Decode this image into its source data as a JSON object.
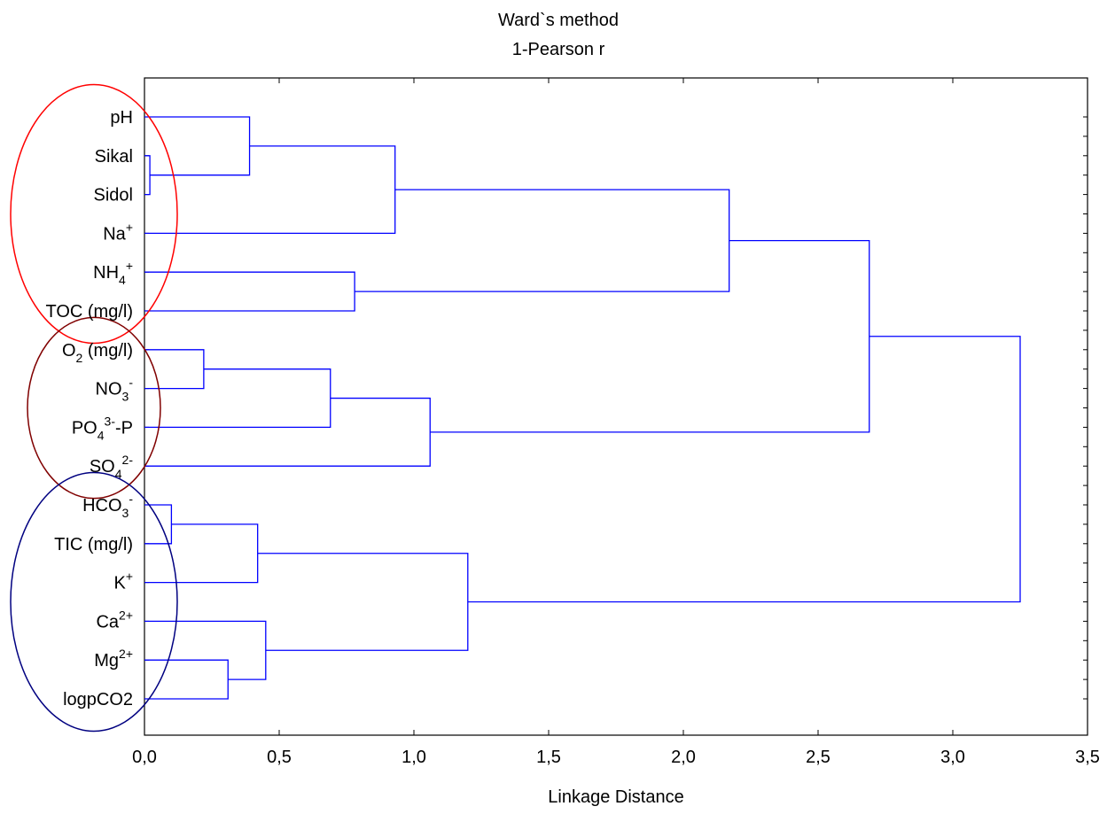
{
  "chart_data": {
    "type": "dendrogram",
    "title": "Ward`s method",
    "subtitle": "1-Pearson r",
    "xlabel": "Linkage Distance",
    "xlim": [
      0,
      3.5
    ],
    "xticks": [
      "0,0",
      "0,5",
      "1,0",
      "1,5",
      "2,0",
      "2,5",
      "3,0",
      "3,5"
    ],
    "xtick_values": [
      0,
      0.5,
      1.0,
      1.5,
      2.0,
      2.5,
      3.0,
      3.5
    ],
    "leaves": [
      {
        "label": "pH",
        "base": "pH"
      },
      {
        "label": "Sikal",
        "base": "Sikal"
      },
      {
        "label": "Sidol",
        "base": "Sidol"
      },
      {
        "label": "Na+",
        "base": "Na",
        "sup": "+"
      },
      {
        "label": "NH4+",
        "base": "NH",
        "sub": "4",
        "sup": "+"
      },
      {
        "label": "TOC (mg/l)",
        "base": "TOC (mg/l)"
      },
      {
        "label": "O2 (mg/l)",
        "base": "O",
        "sub": "2",
        "after": " (mg/l)"
      },
      {
        "label": "NO3-",
        "base": "NO",
        "sub": "3",
        "sup": "-"
      },
      {
        "label": "PO43--P",
        "base": "PO",
        "sub": "4",
        "sup": "3-",
        "after": "-P"
      },
      {
        "label": "SO42-",
        "base": "SO",
        "sub": "4",
        "sup": "2-"
      },
      {
        "label": "HCO3-",
        "base": "HCO",
        "sub": "3",
        "sup": "-"
      },
      {
        "label": "TIC (mg/l)",
        "base": "TIC (mg/l)"
      },
      {
        "label": "K+",
        "base": "K",
        "sup": "+"
      },
      {
        "label": "Ca2+",
        "base": "Ca",
        "sup": "2+"
      },
      {
        "label": "Mg2+",
        "base": "Mg",
        "sup": "2+"
      },
      {
        "label": "logpCO2",
        "base": "logpCO2"
      }
    ],
    "merges": [
      {
        "a": "Sikal",
        "b": "Sidol",
        "height": 0.02
      },
      {
        "a": "pH",
        "b": "M1",
        "height": 0.39
      },
      {
        "a": "M2",
        "b": "Na+",
        "height": 0.93
      },
      {
        "a": "NH4+",
        "b": "TOC (mg/l)",
        "height": 0.78
      },
      {
        "a": "M3",
        "b": "M4",
        "height": 2.17
      },
      {
        "a": "O2 (mg/l)",
        "b": "NO3-",
        "height": 0.22
      },
      {
        "a": "M6",
        "b": "PO43--P",
        "height": 0.69
      },
      {
        "a": "M7",
        "b": "SO42-",
        "height": 1.06
      },
      {
        "a": "M5",
        "b": "M8",
        "height": 2.69
      },
      {
        "a": "HCO3-",
        "b": "TIC (mg/l)",
        "height": 0.1
      },
      {
        "a": "M10",
        "b": "K+",
        "height": 0.42
      },
      {
        "a": "Mg2+",
        "b": "logpCO2",
        "height": 0.31
      },
      {
        "a": "Ca2+",
        "b": "M12",
        "height": 0.45
      },
      {
        "a": "M11",
        "b": "M13",
        "height": 1.2
      },
      {
        "a": "M9",
        "b": "M14",
        "height": 3.25
      }
    ],
    "cluster_ellipses": [
      {
        "color": "#ff0000",
        "first_leaf": 0,
        "last_leaf": 5
      },
      {
        "color": "#800000",
        "first_leaf": 6,
        "last_leaf": 9
      },
      {
        "color": "#000080",
        "first_leaf": 10,
        "last_leaf": 15
      }
    ],
    "line_color": "#0000ff"
  }
}
